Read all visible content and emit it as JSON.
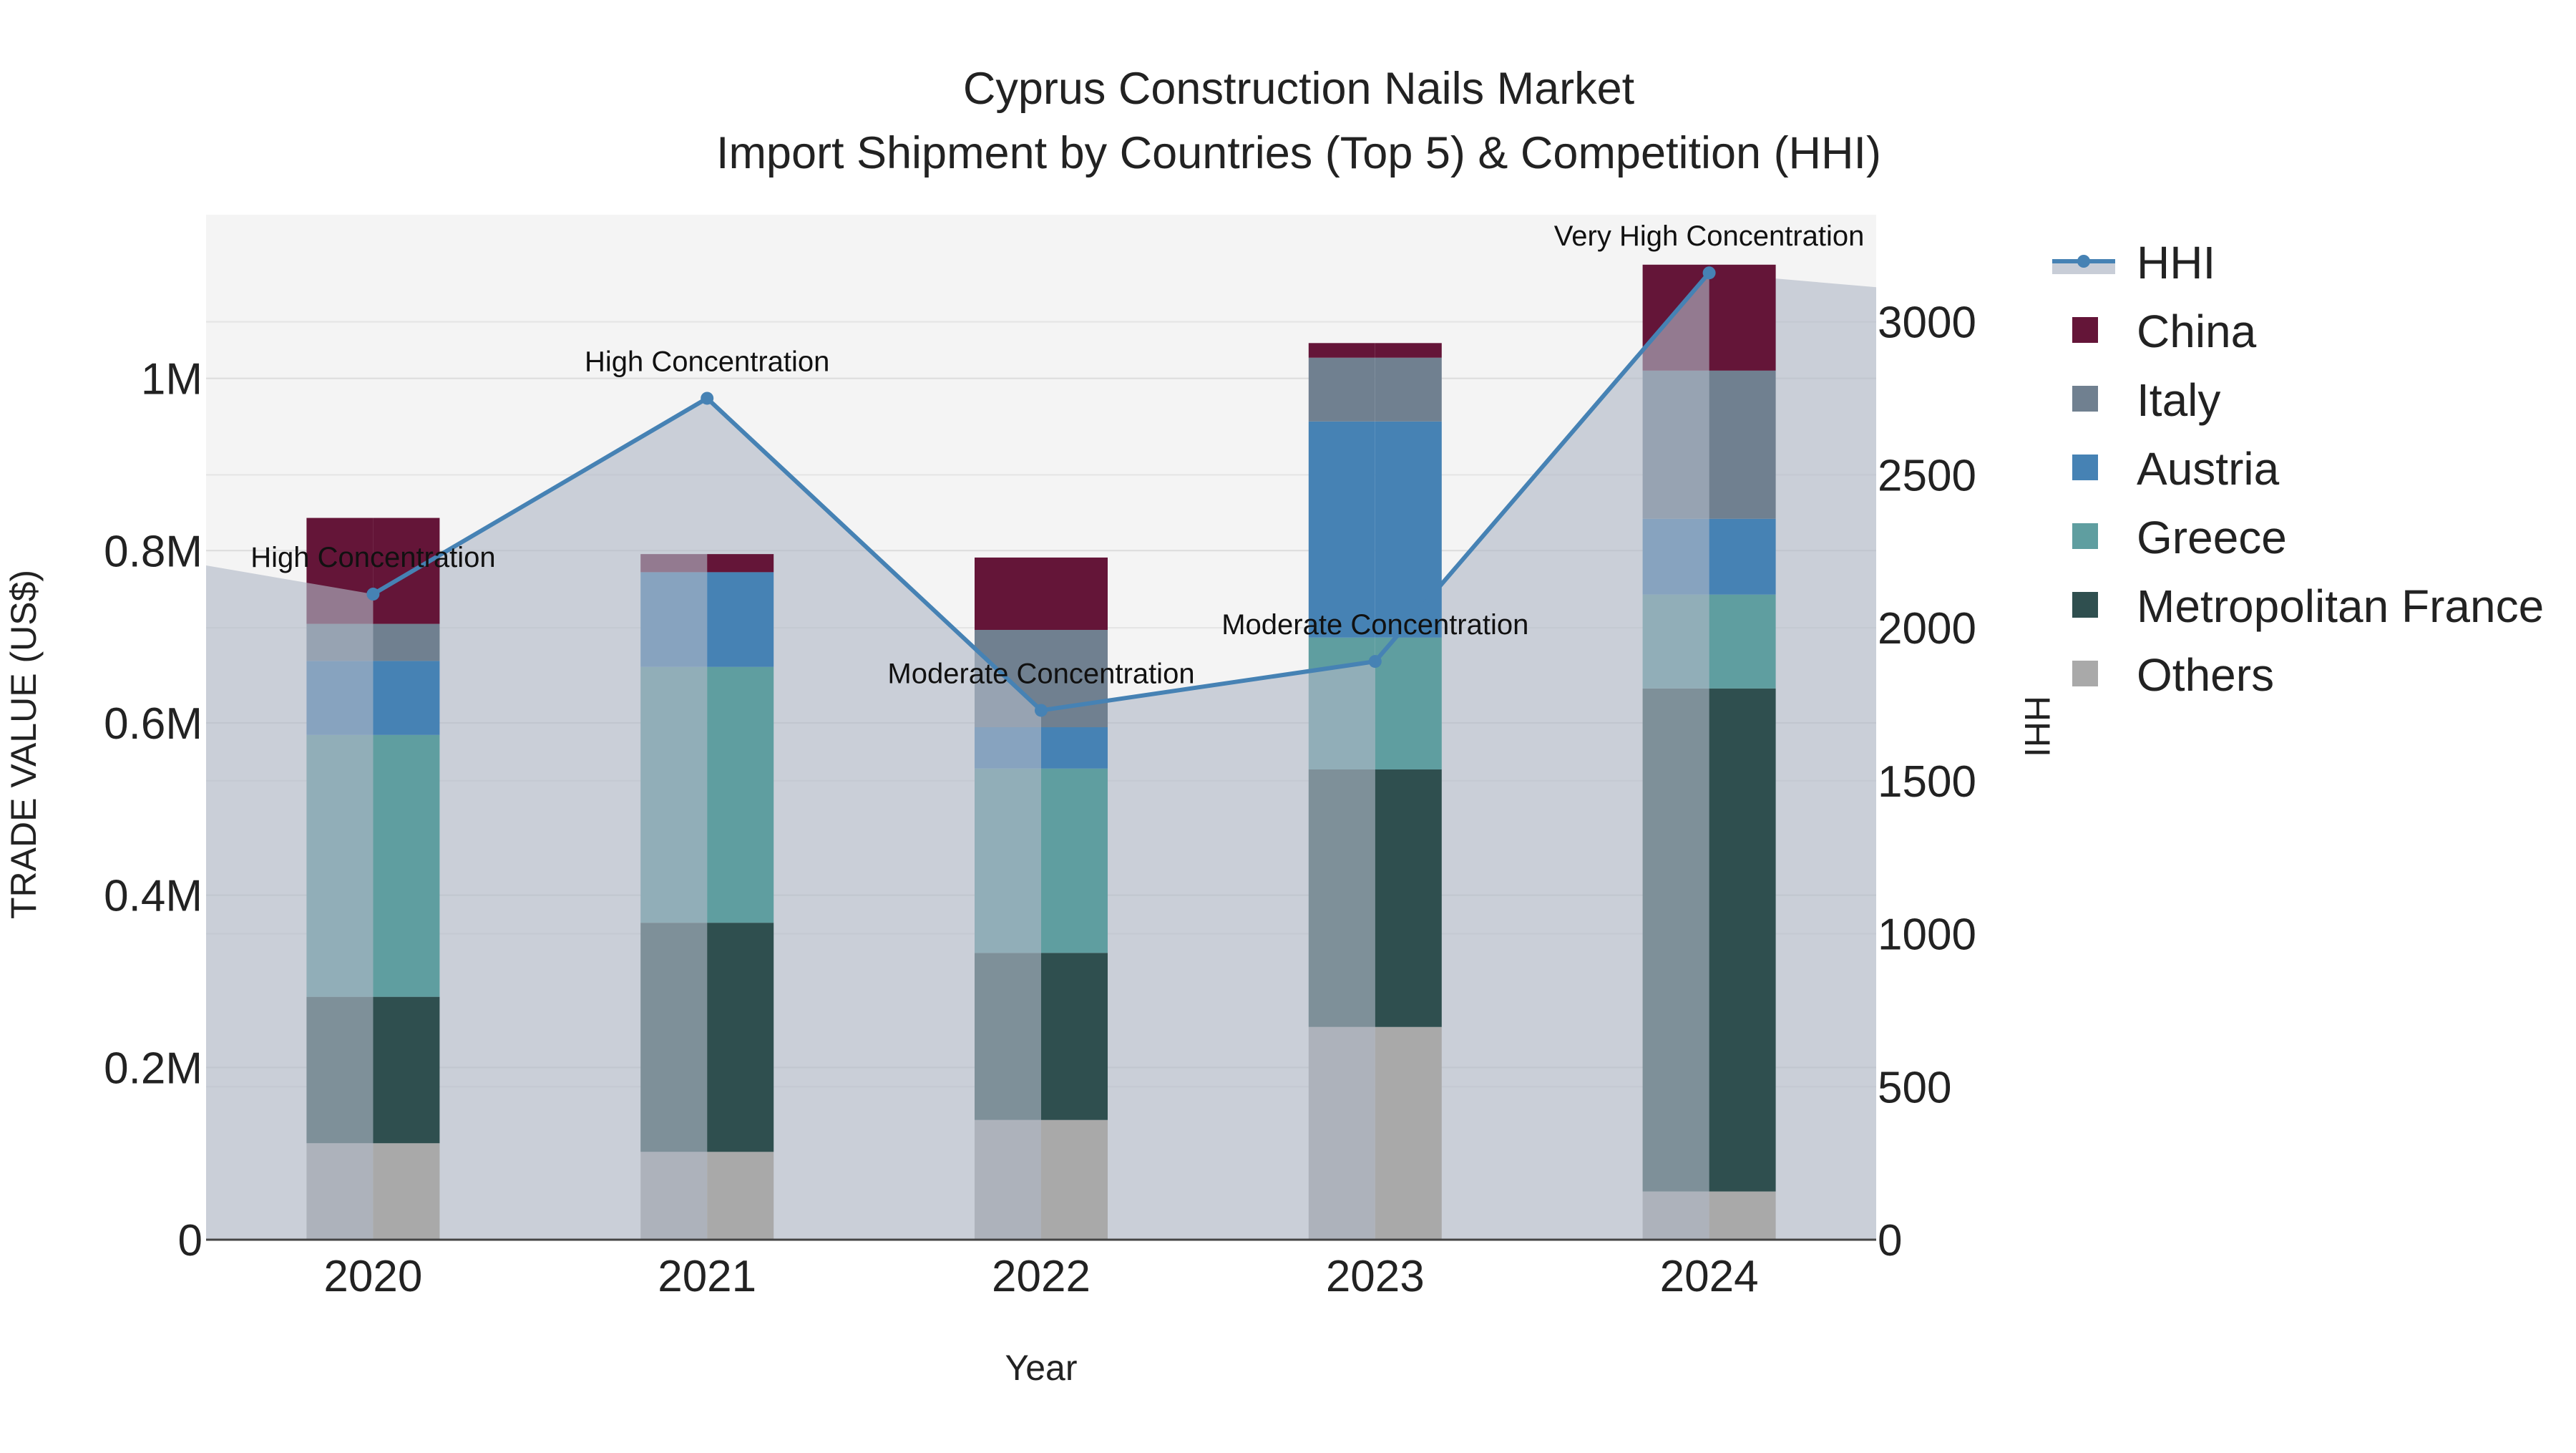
{
  "chart_data": {
    "type": "bar",
    "stacked": true,
    "title": "Cyprus Construction Nails Market",
    "subtitle": "Import Shipment by Countries (Top 5) & Competition (HHI)",
    "xlabel": "Year",
    "ylabel": "TRADE VALUE (US$)",
    "y2label": "HHI",
    "categories": [
      "2020",
      "2021",
      "2022",
      "2023",
      "2024"
    ],
    "ylim": [
      0,
      1190000
    ],
    "y2lim": [
      0,
      3350
    ],
    "yticks": [
      0,
      200000,
      400000,
      600000,
      800000,
      1000000
    ],
    "ytick_labels": [
      "0",
      "0.2M",
      "0.4M",
      "0.6M",
      "0.8M",
      "1M"
    ],
    "y2ticks": [
      0,
      500,
      1000,
      1500,
      2000,
      2500,
      3000
    ],
    "y2tick_labels": [
      "0",
      "500",
      "1000",
      "1500",
      "2000",
      "2500",
      "3000"
    ],
    "series": [
      {
        "name": "Others",
        "color": "#a9a9a9",
        "values": [
          112000,
          102000,
          139000,
          247000,
          56000
        ]
      },
      {
        "name": "Metropolitan France",
        "color": "#2f4f4f",
        "values": [
          170000,
          266000,
          194000,
          299000,
          584000
        ]
      },
      {
        "name": "Greece",
        "color": "#5f9ea0",
        "values": [
          304000,
          297000,
          214000,
          153000,
          109000
        ]
      },
      {
        "name": "Austria",
        "color": "#4682b4",
        "values": [
          86000,
          110000,
          48000,
          251000,
          88000
        ]
      },
      {
        "name": "Italy",
        "color": "#708090",
        "values": [
          43000,
          0,
          113000,
          74000,
          172000
        ]
      },
      {
        "name": "China",
        "color": "#641538",
        "values": [
          123000,
          21000,
          84000,
          17000,
          123000
        ]
      }
    ],
    "hhi": {
      "name": "HHI",
      "color": "#4682b4",
      "values": [
        2110,
        2750,
        1730,
        1890,
        3160
      ],
      "labels": [
        "High Concentration",
        "High Concentration",
        "Moderate Concentration",
        "Moderate Concentration",
        "Very High Concentration"
      ]
    },
    "legend": {
      "position": "right",
      "items": [
        {
          "name": "HHI",
          "color": "#4682b4",
          "kind": "line"
        },
        {
          "name": "China",
          "color": "#641538",
          "kind": "box"
        },
        {
          "name": "Italy",
          "color": "#708090",
          "kind": "box"
        },
        {
          "name": "Austria",
          "color": "#4682b4",
          "kind": "box"
        },
        {
          "name": "Greece",
          "color": "#5f9ea0",
          "kind": "box"
        },
        {
          "name": "Metropolitan France",
          "color": "#2f4f4f",
          "kind": "box"
        },
        {
          "name": "Others",
          "color": "#a9a9a9",
          "kind": "box"
        }
      ]
    },
    "plot_background": "#f4f4f4",
    "grid": true
  }
}
